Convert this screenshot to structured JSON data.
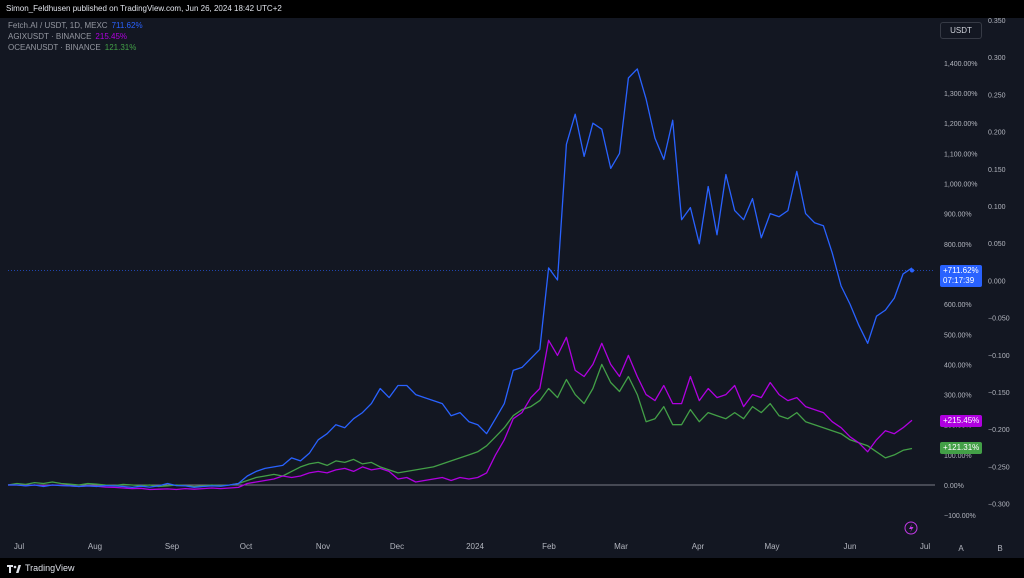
{
  "header": {
    "published_text": "Simon_Feldhusen published on TradingView.com, Jun 26, 2024 18:42 UTC+2"
  },
  "legend": [
    {
      "name": "Fetch.AI / USDT, 1D, MEXC",
      "value": "711.62%",
      "color": "#2962ff"
    },
    {
      "name": "AGIXUSDT · BINANCE",
      "value": "215.45%",
      "color": "#9c27b0"
    },
    {
      "name": "OCEANUSDT · BINANCE",
      "value": "121.31%",
      "color": "#43a047"
    }
  ],
  "currency_button": "USDT",
  "badges": {
    "fet_value": "+711.62%",
    "fet_countdown": "07:17:39",
    "agix_value": "+215.45%",
    "ocean_value": "+121.31%"
  },
  "scale_buttons": {
    "auto": "A",
    "log": "B"
  },
  "footer": {
    "brand": "TradingView"
  },
  "colors": {
    "background": "#131722",
    "fet": "#2962ff",
    "agix": "#b000e0",
    "ocean": "#43a047",
    "zero_line": "#787b86"
  },
  "chart_data": {
    "type": "line",
    "x_tick_labels": [
      "Jul",
      "Aug",
      "Sep",
      "Oct",
      "Nov",
      "Dec",
      "2024",
      "Feb",
      "Mar",
      "Apr",
      "May",
      "Jun",
      "Jul"
    ],
    "y_axis_percent": {
      "ticks": [
        "1,400.00%",
        "1,300.00%",
        "1,200.00%",
        "1,100.00%",
        "1,000.00%",
        "900.00%",
        "800.00%",
        "700.00%",
        "600.00%",
        "500.00%",
        "400.00%",
        "300.00%",
        "200.00%",
        "100.00%",
        "0.00%",
        "−100.00%"
      ],
      "range": [
        -100,
        1400
      ]
    },
    "y_axis_secondary": {
      "ticks": [
        "0.350",
        "0.300",
        "0.250",
        "0.200",
        "0.150",
        "0.100",
        "0.050",
        "0.000",
        "−0.050",
        "−0.100",
        "−0.150",
        "−0.200",
        "−0.250",
        "−0.300"
      ],
      "range": [
        -0.3,
        0.35
      ]
    },
    "series": [
      {
        "name": "Fetch.AI / USDT, 1D, MEXC",
        "values_pct": [
          0,
          0,
          -3,
          0,
          -5,
          0,
          -2,
          -3,
          -5,
          -3,
          -5,
          -2,
          -3,
          -5,
          -8,
          -4,
          -7,
          -3,
          5,
          -2,
          -3,
          -8,
          -5,
          -3,
          -4,
          0,
          5,
          30,
          45,
          55,
          60,
          65,
          90,
          80,
          105,
          150,
          170,
          200,
          190,
          220,
          240,
          270,
          320,
          290,
          330,
          330,
          300,
          290,
          280,
          270,
          230,
          240,
          210,
          200,
          170,
          220,
          270,
          380,
          390,
          420,
          450,
          720,
          680,
          1130,
          1230,
          1090,
          1200,
          1180,
          1050,
          1100,
          1350,
          1380,
          1280,
          1150,
          1080,
          1210,
          880,
          920,
          800,
          990,
          830,
          1030,
          910,
          880,
          950,
          820,
          900,
          890,
          910,
          1040,
          900,
          870,
          860,
          770,
          660,
          600,
          530,
          470,
          560,
          580,
          620,
          700,
          720
        ],
        "last_value_pct": 711.62
      },
      {
        "name": "AGIXUSDT · BINANCE",
        "values_pct": [
          0,
          0,
          -2,
          0,
          -3,
          0,
          -1,
          -3,
          -5,
          -3,
          -4,
          -7,
          -8,
          -10,
          -12,
          -11,
          -15,
          -14,
          -13,
          -15,
          -12,
          -14,
          -12,
          -10,
          -12,
          -10,
          -8,
          5,
          10,
          15,
          20,
          30,
          25,
          30,
          40,
          45,
          40,
          50,
          55,
          45,
          60,
          50,
          55,
          45,
          20,
          25,
          10,
          15,
          20,
          25,
          15,
          25,
          20,
          25,
          40,
          100,
          150,
          220,
          240,
          290,
          320,
          480,
          430,
          490,
          380,
          360,
          400,
          470,
          400,
          360,
          430,
          360,
          300,
          280,
          330,
          270,
          270,
          360,
          280,
          320,
          290,
          300,
          330,
          260,
          300,
          290,
          340,
          300,
          280,
          290,
          260,
          250,
          240,
          210,
          190,
          160,
          140,
          110,
          150,
          180,
          170,
          190,
          215
        ],
        "last_value_pct": 215.45
      },
      {
        "name": "OCEANUSDT · BINANCE",
        "values_pct": [
          0,
          5,
          2,
          8,
          5,
          10,
          5,
          3,
          0,
          5,
          3,
          0,
          -2,
          2,
          0,
          -2,
          0,
          -5,
          -3,
          0,
          -2,
          -5,
          -3,
          0,
          -2,
          0,
          5,
          15,
          25,
          30,
          35,
          30,
          45,
          60,
          70,
          75,
          65,
          80,
          75,
          85,
          70,
          75,
          60,
          50,
          40,
          45,
          50,
          55,
          60,
          70,
          80,
          90,
          100,
          110,
          130,
          160,
          190,
          230,
          250,
          260,
          280,
          320,
          290,
          350,
          300,
          270,
          320,
          400,
          340,
          310,
          360,
          300,
          210,
          220,
          260,
          200,
          200,
          250,
          210,
          240,
          230,
          220,
          240,
          220,
          260,
          240,
          270,
          230,
          220,
          240,
          210,
          200,
          190,
          180,
          170,
          150,
          140,
          130,
          110,
          90,
          100,
          115,
          121
        ],
        "last_value_pct": 121.31
      }
    ],
    "grid": false,
    "legend_position": "top-left"
  }
}
